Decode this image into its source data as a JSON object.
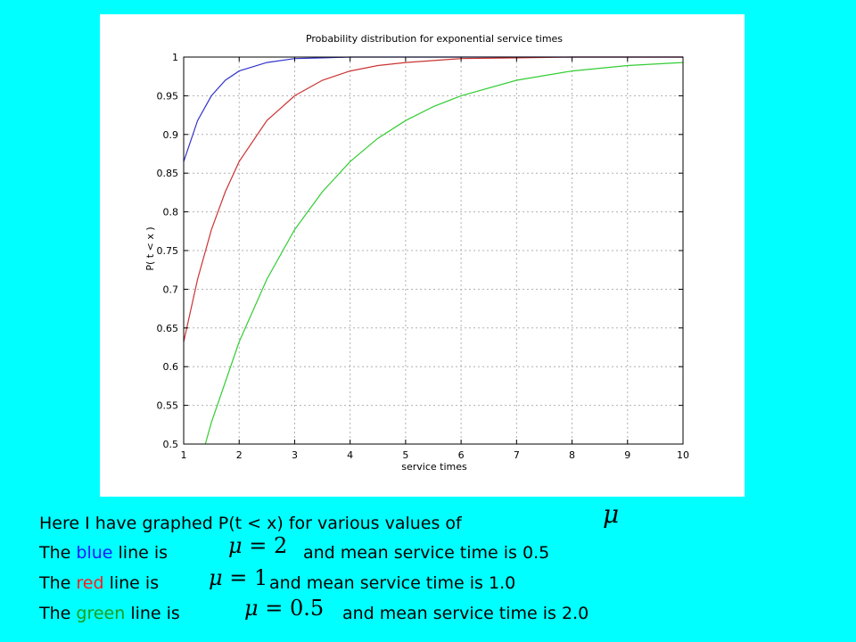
{
  "chart_data": {
    "type": "line",
    "title": "Probability distribution for exponential service times",
    "xlabel": "service times",
    "ylabel": "P( t < x )",
    "xlim": [
      1,
      10
    ],
    "ylim": [
      0.5,
      1
    ],
    "xticks": [
      "1",
      "2",
      "3",
      "4",
      "5",
      "6",
      "7",
      "8",
      "9",
      "10"
    ],
    "yticks": [
      "0.5",
      "0.55",
      "0.6",
      "0.65",
      "0.7",
      "0.75",
      "0.8",
      "0.85",
      "0.9",
      "0.95",
      "1"
    ],
    "grid": true,
    "series": [
      {
        "color": "#3333cc",
        "x": [
          1,
          1.25,
          1.5,
          1.75,
          2,
          2.5,
          3,
          3.5,
          4,
          5,
          6,
          7,
          8,
          9,
          10
        ],
        "y": [
          0.865,
          0.918,
          0.95,
          0.97,
          0.982,
          0.993,
          0.998,
          0.999,
          1.0,
          1.0,
          1.0,
          1.0,
          1.0,
          1.0,
          1.0
        ]
      },
      {
        "color": "#cc3333",
        "x": [
          1,
          1.25,
          1.5,
          1.75,
          2,
          2.5,
          3,
          3.5,
          4,
          4.5,
          5,
          6,
          7,
          8,
          9,
          10
        ],
        "y": [
          0.632,
          0.713,
          0.777,
          0.826,
          0.865,
          0.918,
          0.95,
          0.97,
          0.982,
          0.989,
          0.993,
          0.998,
          0.999,
          1.0,
          1.0,
          1.0
        ]
      },
      {
        "color": "#33cc33",
        "x": [
          1.39,
          1.5,
          2,
          2.5,
          3,
          3.5,
          4,
          4.5,
          5,
          5.5,
          6,
          7,
          8,
          9,
          10
        ],
        "y": [
          0.5,
          0.528,
          0.632,
          0.713,
          0.777,
          0.826,
          0.865,
          0.895,
          0.918,
          0.936,
          0.95,
          0.97,
          0.982,
          0.989,
          0.993
        ]
      }
    ]
  },
  "caption": {
    "line1": "Here I have graphed P(t < x) for various values of",
    "line1_math": "μ",
    "line2_pre": "The ",
    "line2_color": "blue",
    "line2_mid": " line is",
    "line2_math_mu": "μ",
    "line2_math_rest": " = 2",
    "line2_post": "and mean service time is 0.5",
    "line3_pre": "The ",
    "line3_color": "red",
    "line3_mid": " line is",
    "line3_math_mu": "μ",
    "line3_math_rest": " = 1",
    "line3_post": "and mean service time is 1.0",
    "line4_pre": "The ",
    "line4_color": "green",
    "line4_mid": " line is",
    "line4_math_mu": "μ",
    "line4_math_rest": " = 0.5",
    "line4_post": "and mean service time is 2.0"
  },
  "colors": {
    "blue": "#1a1aff",
    "red": "#ff1a1a",
    "green": "#1aa01a",
    "background": "#00ffff"
  }
}
